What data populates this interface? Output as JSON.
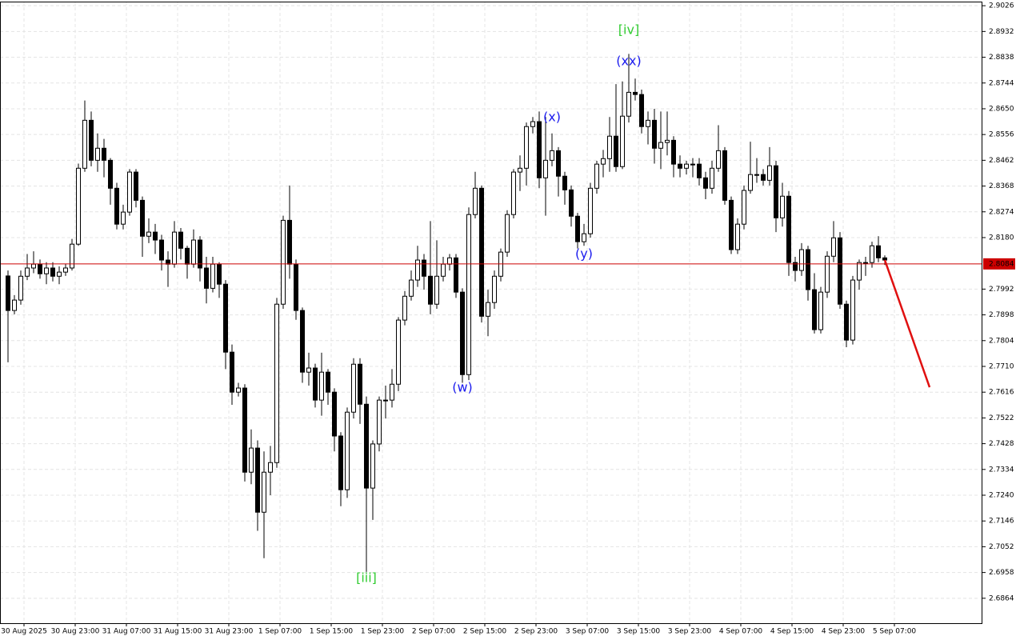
{
  "chart_data": {
    "type": "candlestick",
    "ylim": [
      2.6773,
      2.9041
    ],
    "xlim": [
      -1.25,
      152.25
    ],
    "yticks": [
      2.9026,
      2.8932,
      2.8838,
      2.8744,
      {
        "value": 2.865,
        "label": "2.8650"
      },
      2.8556,
      2.8462,
      2.8368,
      2.8274,
      {
        "value": 2.818,
        "label": "2.8180"
      },
      2.7992,
      2.7898,
      2.7804,
      {
        "value": 2.771,
        "label": "2.7710"
      },
      2.7616,
      2.7522,
      2.7428,
      2.7334,
      {
        "value": 2.724,
        "label": "2.7240"
      },
      2.7146,
      2.7052,
      2.6958,
      2.6864
    ],
    "xticks": [
      {
        "value": 2.5,
        "label": "30 Aug 2025"
      },
      {
        "value": 10.5,
        "label": "30 Aug 23:00"
      },
      {
        "value": 18.5,
        "label": "31 Aug 07:00"
      },
      {
        "value": 26.5,
        "label": "31 Aug 15:00"
      },
      {
        "value": 34.5,
        "label": "31 Aug 23:00"
      },
      {
        "value": 42.5,
        "label": "1 Sep 07:00"
      },
      {
        "value": 50.5,
        "label": "1 Sep 15:00"
      },
      {
        "value": 58.5,
        "label": "1 Sep 23:00"
      },
      {
        "value": 66.5,
        "label": "2 Sep 07:00"
      },
      {
        "value": 74.5,
        "label": "2 Sep 15:00"
      },
      {
        "value": 82.5,
        "label": "2 Sep 23:00"
      },
      {
        "value": 90.5,
        "label": "3 Sep 07:00"
      },
      {
        "value": 98.5,
        "label": "3 Sep 15:00"
      },
      {
        "value": 106.5,
        "label": "3 Sep 23:00"
      },
      {
        "value": 114.5,
        "label": "4 Sep 07:00"
      },
      {
        "value": 122.5,
        "label": "4 Sep 15:00"
      },
      {
        "value": 130.5,
        "label": "4 Sep 23:00"
      },
      {
        "value": 138.5,
        "label": "5 Sep 07:00"
      }
    ],
    "grid": true,
    "up_color": "#ffffff",
    "down_color": "#000000",
    "open": [
      2.804,
      2.7914,
      2.7952,
      2.8039,
      2.8069,
      2.8083,
      2.8048,
      2.8069,
      2.8039,
      2.8054,
      2.8069,
      2.8156,
      2.8433,
      2.8608,
      2.8462,
      2.8506,
      2.8462,
      2.836,
      2.8229,
      2.8273,
      2.8419,
      2.8316,
      2.8185,
      2.82,
      2.8171,
      2.8098,
      2.8083,
      2.82,
      2.8141,
      2.8083,
      2.8171,
      2.8069,
      2.7995,
      2.8083,
      2.801,
      2.7762,
      2.7616,
      2.7631,
      2.7324,
      2.7412,
      2.7178,
      2.7324,
      2.7359,
      2.7937,
      2.8243,
      2.8083,
      2.7914,
      2.7689,
      2.7704,
      2.7587,
      2.7689,
      2.7616,
      2.7456,
      2.726,
      2.7543,
      2.7718,
      2.7572,
      2.7266,
      2.7427,
      2.7587,
      2.7587,
      2.7645,
      2.7879,
      2.7966,
      2.8025,
      2.8098,
      2.8039,
      2.7937,
      2.8039,
      2.8083,
      2.8106,
      2.7981,
      2.768,
      2.8264,
      2.836,
      2.7893,
      2.7943,
      2.8039,
      2.8127,
      2.8264,
      2.8419,
      2.8433,
      2.8585,
      2.8603,
      2.8398,
      2.8462,
      2.8497,
      2.8404,
      2.8354,
      2.8258,
      2.8165,
      2.8194,
      2.836,
      2.8448,
      2.8468,
      2.855,
      2.8439,
      2.8623,
      2.871,
      2.8702,
      2.8585,
      2.8608,
      2.8506,
      2.8527,
      2.8535,
      2.8448,
      2.8433,
      2.8448,
      2.8448,
      2.8398,
      2.836,
      2.8433,
      2.8497,
      2.8316,
      2.8136,
      2.8229,
      2.8352,
      2.841,
      2.841,
      2.8389,
      2.8442,
      2.8252,
      2.8331,
      2.8089,
      2.806,
      2.8136,
      2.799,
      2.7844,
      2.7981,
      2.8112,
      2.8179,
      2.7937,
      2.7806,
      2.8025,
      2.8089,
      2.8089,
      2.815,
      2.8106
    ],
    "high": [
      2.806,
      2.797,
      2.806,
      2.812,
      2.813,
      2.81,
      2.809,
      2.809,
      2.8075,
      2.8085,
      2.8175,
      2.845,
      2.868,
      2.864,
      2.856,
      2.854,
      2.847,
      2.838,
      2.83,
      2.843,
      2.843,
      2.833,
      2.825,
      2.823,
      2.819,
      2.813,
      2.824,
      2.8215,
      2.815,
      2.821,
      2.8185,
      2.811,
      2.811,
      2.809,
      2.8025,
      2.779,
      2.765,
      2.7645,
      2.748,
      2.744,
      2.74,
      2.742,
      2.796,
      2.826,
      2.837,
      2.81,
      2.7925,
      2.776,
      2.772,
      2.776,
      2.77,
      2.763,
      2.747,
      2.756,
      2.774,
      2.774,
      2.76,
      2.744,
      2.76,
      2.764,
      2.77,
      2.789,
      2.7985,
      2.806,
      2.815,
      2.812,
      2.824,
      2.817,
      2.811,
      2.812,
      2.812,
      2.7995,
      2.829,
      2.842,
      2.837,
      2.799,
      2.806,
      2.814,
      2.828,
      2.843,
      2.848,
      2.86,
      2.862,
      2.864,
      2.862,
      2.856,
      2.851,
      2.842,
      2.837,
      2.827,
      2.823,
      2.838,
      2.846,
      2.85,
      2.862,
      2.874,
      2.875,
      2.885,
      2.876,
      2.872,
      2.864,
      2.865,
      2.864,
      2.864,
      2.855,
      2.848,
      2.846,
      2.847,
      2.847,
      2.842,
      2.846,
      2.859,
      2.851,
      2.833,
      2.825,
      2.837,
      2.853,
      2.847,
      2.843,
      2.851,
      2.846,
      2.838,
      2.835,
      2.811,
      2.816,
      2.815,
      2.805,
      2.8,
      2.813,
      2.824,
      2.82,
      2.795,
      2.804,
      2.81,
      2.811,
      2.8165,
      2.8185,
      2.8115
    ],
    "low": [
      2.7725,
      2.79,
      2.7935,
      2.8025,
      2.805,
      2.803,
      2.801,
      2.802,
      2.801,
      2.804,
      2.806,
      2.815,
      2.842,
      2.844,
      2.842,
      2.84,
      2.83,
      2.821,
      2.821,
      2.826,
      2.829,
      2.811,
      2.816,
      2.812,
      2.806,
      2.8,
      2.807,
      2.81,
      2.803,
      2.807,
      2.802,
      2.794,
      2.798,
      2.796,
      2.77,
      2.757,
      2.76,
      2.729,
      2.728,
      2.711,
      2.701,
      2.724,
      2.734,
      2.792,
      2.803,
      2.788,
      2.765,
      2.764,
      2.756,
      2.753,
      2.757,
      2.74,
      2.72,
      2.723,
      2.752,
      2.75,
      2.696,
      2.715,
      2.74,
      2.752,
      2.756,
      2.762,
      2.786,
      2.795,
      2.8,
      2.799,
      2.79,
      2.792,
      2.802,
      2.806,
      2.796,
      2.765,
      2.766,
      2.825,
      2.787,
      2.782,
      2.792,
      2.802,
      2.811,
      2.825,
      2.835,
      2.837,
      2.856,
      2.836,
      2.826,
      2.844,
      2.833,
      2.83,
      2.822,
      2.814,
      2.815,
      2.818,
      2.834,
      2.84,
      2.842,
      2.842,
      2.843,
      2.86,
      2.868,
      2.856,
      2.852,
      2.845,
      2.843,
      2.848,
      2.84,
      2.84,
      2.841,
      2.84,
      2.837,
      2.832,
      2.834,
      2.842,
      2.83,
      2.812,
      2.812,
      2.821,
      2.834,
      2.838,
      2.837,
      2.837,
      2.82,
      2.822,
      2.804,
      2.802,
      2.804,
      2.795,
      2.783,
      2.783,
      2.796,
      2.809,
      2.792,
      2.778,
      2.779,
      2.799,
      2.804,
      2.807,
      2.809,
      2.808
    ],
    "close": [
      2.7914,
      2.7952,
      2.8039,
      2.8069,
      2.8083,
      2.8048,
      2.8069,
      2.8039,
      2.8054,
      2.8069,
      2.8156,
      2.8433,
      2.8608,
      2.8462,
      2.8506,
      2.8462,
      2.836,
      2.8229,
      2.8273,
      2.8419,
      2.8316,
      2.8185,
      2.82,
      2.8171,
      2.8098,
      2.8083,
      2.82,
      2.8141,
      2.8083,
      2.8171,
      2.8069,
      2.7995,
      2.8083,
      2.801,
      2.7762,
      2.7616,
      2.7631,
      2.7324,
      2.7412,
      2.7178,
      2.7324,
      2.7359,
      2.7937,
      2.8243,
      2.8083,
      2.7914,
      2.7689,
      2.7704,
      2.7587,
      2.7689,
      2.7616,
      2.7456,
      2.726,
      2.7543,
      2.7718,
      2.7572,
      2.7266,
      2.7427,
      2.7587,
      2.7587,
      2.7645,
      2.7879,
      2.7966,
      2.8025,
      2.8098,
      2.8039,
      2.7937,
      2.8039,
      2.8083,
      2.8106,
      2.7981,
      2.768,
      2.8264,
      2.836,
      2.7893,
      2.7943,
      2.8039,
      2.8127,
      2.8264,
      2.8419,
      2.8433,
      2.8585,
      2.8603,
      2.8398,
      2.8462,
      2.8497,
      2.8404,
      2.8354,
      2.8258,
      2.8165,
      2.8194,
      2.836,
      2.8448,
      2.8468,
      2.855,
      2.8439,
      2.8623,
      2.871,
      2.8702,
      2.8585,
      2.8608,
      2.8506,
      2.8527,
      2.8535,
      2.8448,
      2.8433,
      2.8448,
      2.8448,
      2.8398,
      2.836,
      2.8433,
      2.8497,
      2.8316,
      2.8136,
      2.8229,
      2.8352,
      2.841,
      2.841,
      2.8389,
      2.8442,
      2.8252,
      2.8331,
      2.8089,
      2.806,
      2.8136,
      2.799,
      2.7844,
      2.7981,
      2.8112,
      2.8179,
      2.7937,
      2.7806,
      2.8025,
      2.8089,
      2.8089,
      2.815,
      2.8106,
      2.8098
    ],
    "current_price": 2.8084,
    "current_color": "#cc0000",
    "forecast": {
      "x": [
        137,
        144
      ],
      "values": [
        2.8098,
        2.7634
      ],
      "color": "#e01010"
    },
    "annotations": [
      {
        "text": "[iii]",
        "color": "#33cc33"
      },
      {
        "text": "[iv]",
        "color": "#33cc33"
      },
      {
        "text": "(xx)",
        "color": "#1a1aee"
      },
      {
        "text": "(x)",
        "color": "#1a1aee"
      },
      {
        "text": "(y)",
        "color": "#1a1aee"
      },
      {
        "text": "(w)",
        "color": "#1a1aee"
      }
    ]
  }
}
